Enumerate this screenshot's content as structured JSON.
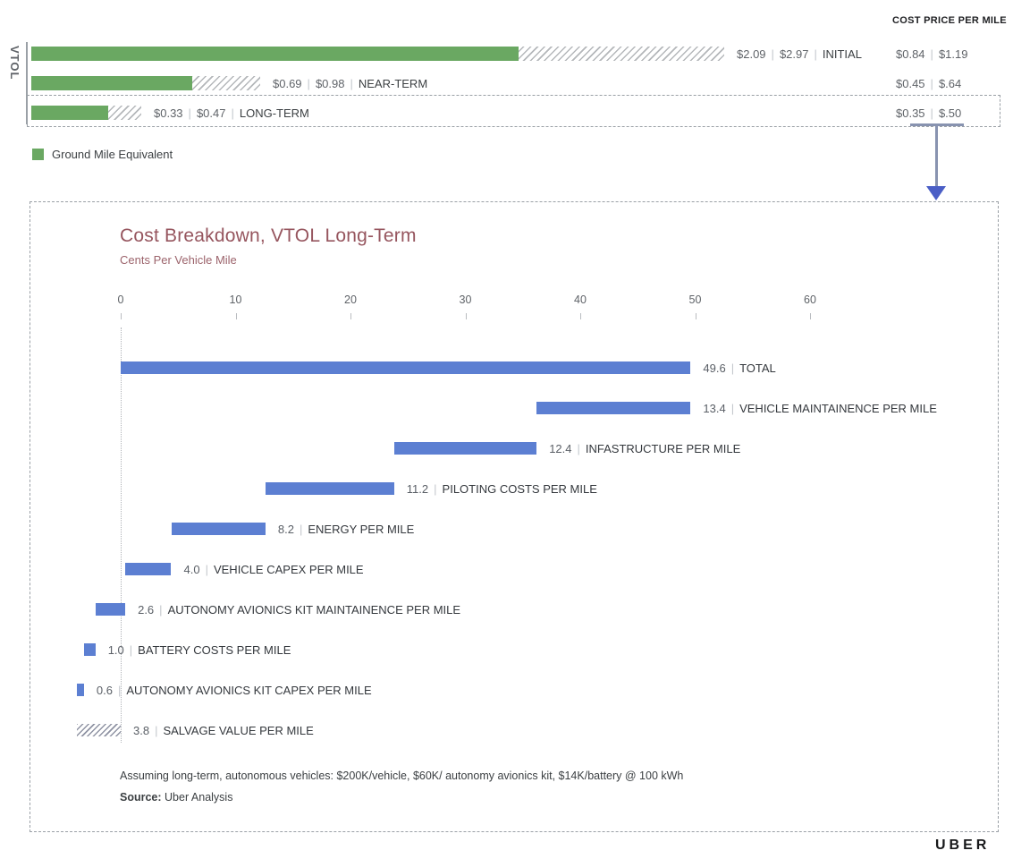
{
  "page": {
    "logo": "UBER"
  },
  "chart_data": [
    {
      "type": "bar",
      "orientation": "horizontal",
      "axis_group_label": "VTOL",
      "right_column_header": "COST PRICE PER MILE",
      "legend": [
        {
          "label": "Ground Mile Equivalent",
          "color": "#6aa862"
        }
      ],
      "legend_position": "bottom-left",
      "units": "dollars per mile",
      "categories": [
        "INITIAL",
        "NEAR-TERM",
        "LONG-TERM"
      ],
      "series": [
        {
          "name": "Ground Mile Equivalent (solid green)",
          "values": [
            2.09,
            0.69,
            0.33
          ]
        },
        {
          "name": "Total cost (hatched full bar)",
          "values": [
            2.97,
            0.98,
            0.47
          ]
        }
      ],
      "rows": [
        {
          "category": "INITIAL",
          "cost": 2.09,
          "price": 2.97,
          "cost_text": "$2.09",
          "price_text": "$2.97",
          "right_cost_text": "$0.84",
          "right_price_text": "$1.19",
          "boxed": false
        },
        {
          "category": "NEAR-TERM",
          "cost": 0.69,
          "price": 0.98,
          "cost_text": "$0.69",
          "price_text": "$0.98",
          "right_cost_text": "$0.45",
          "right_price_text": "$.64",
          "boxed": false
        },
        {
          "category": "LONG-TERM",
          "cost": 0.33,
          "price": 0.47,
          "cost_text": "$0.33",
          "price_text": "$0.47",
          "right_cost_text": "$0.35",
          "right_price_text": "$.50",
          "boxed": true
        }
      ]
    },
    {
      "type": "bar",
      "subtype": "waterfall",
      "title": "Cost Breakdown, VTOL Long-Term",
      "subtitle": "Cents Per Vehicle Mile",
      "xlabel": "",
      "ylabel": "",
      "xlim": [
        -4,
        62
      ],
      "x_ticks": [
        0,
        10,
        20,
        30,
        40,
        50,
        60
      ],
      "grid": false,
      "bar_color": "#5c7fd2",
      "bars": [
        {
          "value": 49.6,
          "value_text": "49.6",
          "label": "TOTAL",
          "start": 0,
          "end": 49.6,
          "style": "solid"
        },
        {
          "value": 13.4,
          "value_text": "13.4",
          "label": "VEHICLE MAINTAINENCE PER MILE",
          "start": 36.2,
          "end": 49.6,
          "style": "solid"
        },
        {
          "value": 12.4,
          "value_text": "12.4",
          "label": "INFASTRUCTURE PER MILE",
          "start": 23.8,
          "end": 36.2,
          "style": "solid"
        },
        {
          "value": 11.2,
          "value_text": "11.2",
          "label": "PILOTING COSTS PER MILE",
          "start": 12.6,
          "end": 23.8,
          "style": "solid"
        },
        {
          "value": 8.2,
          "value_text": "8.2",
          "label": "ENERGY PER MILE",
          "start": 4.4,
          "end": 12.6,
          "style": "solid"
        },
        {
          "value": 4.0,
          "value_text": "4.0",
          "label": "VEHICLE CAPEX PER MILE",
          "start": 0.4,
          "end": 4.4,
          "style": "solid"
        },
        {
          "value": 2.6,
          "value_text": "2.6",
          "label": "AUTONOMY AVIONICS KIT MAINTAINENCE PER MILE",
          "start": -2.2,
          "end": 0.4,
          "style": "solid"
        },
        {
          "value": 1.0,
          "value_text": "1.0",
          "label": "BATTERY COSTS PER MILE",
          "start": -3.2,
          "end": -2.2,
          "style": "solid"
        },
        {
          "value": 0.6,
          "value_text": "0.6",
          "label": "AUTONOMY AVIONICS KIT CAPEX PER MILE",
          "start": -3.8,
          "end": -3.2,
          "style": "solid"
        },
        {
          "value": 3.8,
          "value_text": "3.8",
          "label": "SALVAGE VALUE PER MILE",
          "start": -3.8,
          "end": 0,
          "style": "hatched"
        }
      ],
      "footnote": "Assuming long-term, autonomous vehicles: $200K/vehicle, $60K/ autonomy avionics kit, $14K/battery @ 100 kWh",
      "source_label": "Source:",
      "source_text": "Uber Analysis"
    }
  ],
  "colors": {
    "green": "#6aa862",
    "blue": "#5c7fd2",
    "title": "#96555e",
    "arrow_head": "#4a5ec6"
  }
}
